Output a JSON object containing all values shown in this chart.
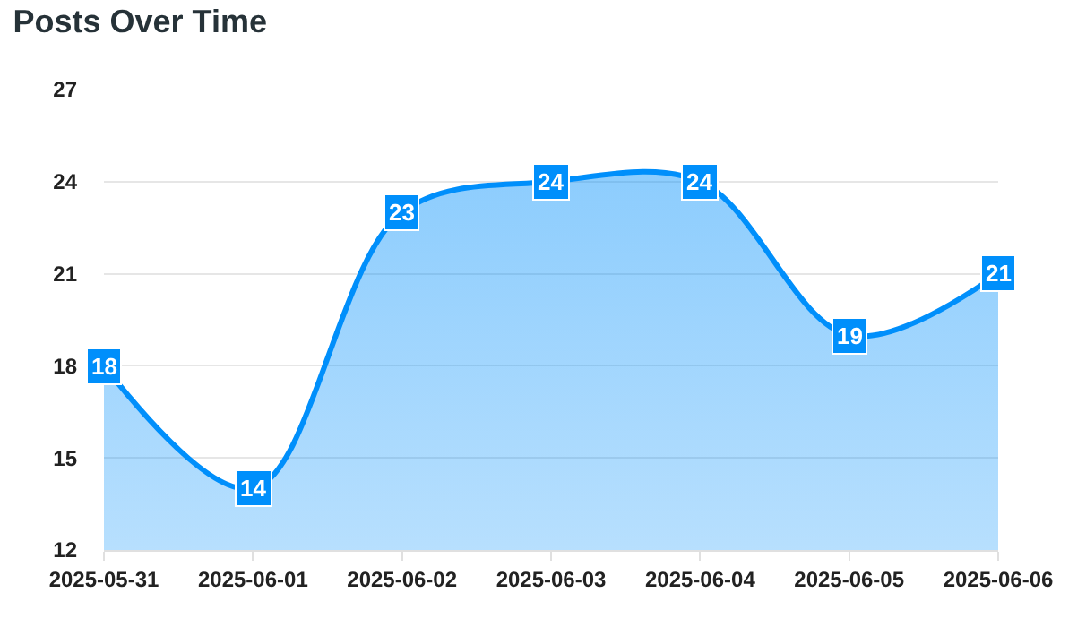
{
  "chart_data": {
    "type": "area",
    "title": "Posts Over Time",
    "x": [
      "2025-05-31",
      "2025-06-01",
      "2025-06-02",
      "2025-06-03",
      "2025-06-04",
      "2025-06-05",
      "2025-06-06"
    ],
    "series": [
      {
        "color": "#008ffb",
        "values": [
          18,
          14,
          23,
          24,
          24,
          19,
          21
        ]
      }
    ],
    "xlim": [
      "2025-05-31",
      "2025-06-06"
    ],
    "xticks": [
      {
        "value": "2025-05-31",
        "label": "2025-05-31"
      },
      {
        "value": "2025-06-01",
        "label": "2025-06-01"
      },
      {
        "value": "2025-06-02",
        "label": "2025-06-02"
      },
      {
        "value": "2025-06-03",
        "label": "2025-06-03"
      },
      {
        "value": "2025-06-04",
        "label": "2025-06-04"
      },
      {
        "value": "2025-06-05",
        "label": "2025-06-05"
      },
      {
        "value": "2025-06-06",
        "label": "2025-06-06"
      }
    ],
    "ylim": [
      12,
      27
    ],
    "yticks": [
      12,
      15,
      18,
      21,
      24,
      27
    ],
    "grid": "y",
    "data_labels": true,
    "line_style": "solid"
  }
}
